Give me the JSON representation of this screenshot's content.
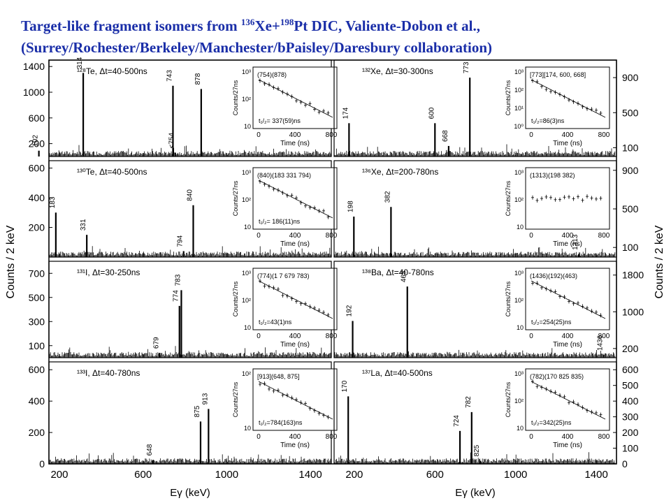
{
  "title": {
    "line1_a": "Target-like fragment isomers from ",
    "line1_sup1": "136",
    "line1_b": "Xe+",
    "line1_sup2": "198",
    "line1_c": "Pt DIC, Valiente-Dobon et al.,",
    "line2": "(Surrey/Rochester/Berkeley/Manchester/bPaisley/Daresbury collaboration)"
  },
  "axes": {
    "ylabel_left": "Counts / 2 keV",
    "ylabel_right": "Counts / 2 keV",
    "xlabel_left": "Eγ (keV)",
    "xlabel_right": "Eγ (keV)",
    "x_left": {
      "range": [
        150,
        1500
      ],
      "ticks": [
        "200",
        "600",
        "1000",
        "1400"
      ],
      "tick_vals": [
        200,
        600,
        1000,
        1400
      ]
    },
    "x_right": {
      "range": [
        100,
        1500
      ],
      "ticks": [
        "200",
        "600",
        "1000",
        "1400"
      ],
      "tick_vals": [
        200,
        600,
        1000,
        1400
      ]
    }
  },
  "inset_common": {
    "xlabel": "Time (ns)",
    "ylabel": "Counts/27ns",
    "xticks": [
      "0",
      "400",
      "800"
    ]
  },
  "chart_data": [
    {
      "type": "bar",
      "nucleus": "128Te",
      "label": "¹²⁸Te, Δt=40-500ns",
      "side": "left",
      "row": 0,
      "ylim": [
        0,
        1500
      ],
      "yticks": [
        200,
        600,
        1000,
        1400
      ],
      "peaks": [
        {
          "x": 102,
          "y": 90,
          "label": "102"
        },
        {
          "x": 314,
          "y": 1300,
          "label": "314"
        },
        {
          "x": 743,
          "y": 1100,
          "label": "743"
        },
        {
          "x": 754,
          "y": 60,
          "label": "<754"
        },
        {
          "x": 878,
          "y": 1050,
          "label": "878"
        }
      ],
      "inset": {
        "label": "(754)(878)",
        "halflife": "t₁/₂= 337(59)ns",
        "ylog": [
          "10³",
          "10²",
          "10"
        ]
      }
    },
    {
      "type": "bar",
      "nucleus": "132Xe",
      "label": "¹³²Xe, Δt=30-300ns",
      "side": "right",
      "row": 0,
      "ylim": [
        0,
        1100
      ],
      "yticks": [
        100,
        500,
        900
      ],
      "peaks": [
        {
          "x": 174,
          "y": 380,
          "label": "174"
        },
        {
          "x": 600,
          "y": 380,
          "label": "600"
        },
        {
          "x": 668,
          "y": 120,
          "label": "668"
        },
        {
          "x": 773,
          "y": 900,
          "label": "773"
        }
      ],
      "inset": {
        "label": "[773][174, 600, 668]",
        "halflife": "t₁/₂=86(3)ns",
        "ylog": [
          "10³",
          "10²",
          "10¹",
          "10⁰"
        ]
      }
    },
    {
      "type": "bar",
      "nucleus": "130Te",
      "label": "¹³⁰Te, Δt=40-500ns",
      "side": "left",
      "row": 1,
      "ylim": [
        0,
        650
      ],
      "yticks": [
        200,
        400,
        600
      ],
      "peaks": [
        {
          "x": 183,
          "y": 300,
          "label": "183"
        },
        {
          "x": 331,
          "y": 150,
          "label": "331"
        },
        {
          "x": 794,
          "y": 40,
          "label": "794"
        },
        {
          "x": 840,
          "y": 350,
          "label": "840"
        }
      ],
      "inset": {
        "label": "(840)(183 331 794)",
        "halflife": "t₁/₂= 186(11)ns",
        "ylog": [
          "10³",
          "10²",
          "10"
        ]
      }
    },
    {
      "type": "bar",
      "nucleus": "136Xe",
      "label": "¹³⁶Xe, Δt=200-780ns",
      "side": "right",
      "row": 1,
      "ylim": [
        0,
        1000
      ],
      "yticks": [
        100,
        500,
        900
      ],
      "peaks": [
        {
          "x": 198,
          "y": 420,
          "label": "198"
        },
        {
          "x": 382,
          "y": 520,
          "label": "382"
        },
        {
          "x": 1313,
          "y": 30,
          "label": "1313"
        }
      ],
      "inset": {
        "label": "(1313)(198 382)",
        "halflife": "",
        "ylog": [
          "10³",
          "10²",
          "10"
        ]
      }
    },
    {
      "type": "bar",
      "nucleus": "131I",
      "label": "¹³¹I, Δt=30-250ns",
      "side": "left",
      "row": 2,
      "ylim": [
        0,
        800
      ],
      "yticks": [
        100,
        300,
        500,
        700
      ],
      "peaks": [
        {
          "x": 679,
          "y": 40,
          "label": "679"
        },
        {
          "x": 774,
          "y": 430,
          "label": "774"
        },
        {
          "x": 783,
          "y": 560,
          "label": "783"
        }
      ],
      "inset": {
        "label": "(774)(1 7 679 783)",
        "halflife": "t₁/₂=43(1)ns",
        "ylog": [
          "10³",
          "10²",
          "10"
        ]
      }
    },
    {
      "type": "bar",
      "nucleus": "138Ba",
      "label": "¹³⁸Ba, Δt=40-780ns",
      "side": "right",
      "row": 2,
      "ylim": [
        0,
        2100
      ],
      "yticks": [
        200,
        1000,
        1800
      ],
      "peaks": [
        {
          "x": 192,
          "y": 800,
          "label": "192"
        },
        {
          "x": 463,
          "y": 1550,
          "label": "463"
        },
        {
          "x": 1436,
          "y": 60,
          "label": "1436"
        }
      ],
      "inset": {
        "label": "(1436)(192)(463)",
        "halflife": "t₁/₂=254(25)ns",
        "ylog": [
          "10³",
          "10²",
          "10"
        ]
      }
    },
    {
      "type": "bar",
      "nucleus": "133I",
      "label": "¹³³I, Δt=40-780ns",
      "side": "left",
      "row": 3,
      "ylim": [
        0,
        650
      ],
      "yticks": [
        0,
        200,
        400,
        600
      ],
      "peaks": [
        {
          "x": 648,
          "y": 25,
          "label": "648"
        },
        {
          "x": 875,
          "y": 270,
          "label": "875"
        },
        {
          "x": 913,
          "y": 350,
          "label": "913"
        }
      ],
      "inset": {
        "label": "[913](648, 875]",
        "halflife": "t₁/₂=784(163)ns",
        "ylog": [
          "10²",
          "10"
        ]
      }
    },
    {
      "type": "bar",
      "nucleus": "137La",
      "label": "¹³⁷La, Δt=40-500ns",
      "side": "right",
      "row": 3,
      "ylim": [
        0,
        650
      ],
      "yticks": [
        0,
        100,
        200,
        300,
        400,
        500,
        600
      ],
      "peaks": [
        {
          "x": 170,
          "y": 430,
          "label": "170"
        },
        {
          "x": 724,
          "y": 210,
          "label": "724"
        },
        {
          "x": 782,
          "y": 330,
          "label": "782"
        },
        {
          "x": 825,
          "y": 20,
          "label": "825"
        }
      ],
      "inset": {
        "label": "(782)(170 825 835)",
        "halflife": "t₁/₂=342(25)ns",
        "ylog": [
          "10³",
          "10²",
          "10"
        ]
      }
    }
  ]
}
